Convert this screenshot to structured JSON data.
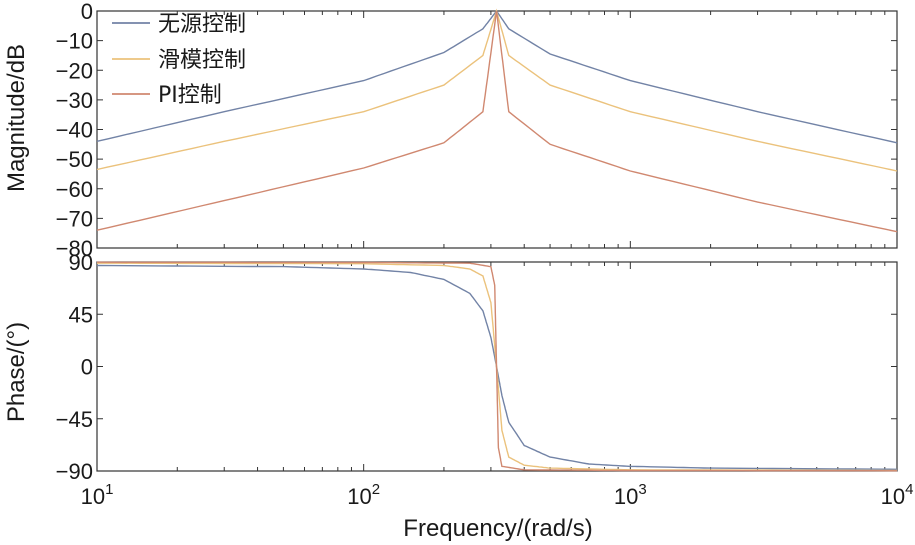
{
  "chart_data": [
    {
      "type": "line",
      "ylabel": "Magnitude/dB",
      "xscale": "log",
      "xlim": [
        10,
        10000
      ],
      "ylim": [
        -80,
        0
      ],
      "yticks": [
        0,
        -10,
        -20,
        -30,
        -40,
        -50,
        -60,
        -70,
        -80
      ],
      "legend": "top-left",
      "grid": false,
      "series": [
        {
          "name": "无源控制",
          "color": "#7283a6",
          "x": [
            10,
            30,
            100,
            200,
            280,
            315,
            350,
            500,
            1000,
            3000,
            10000
          ],
          "values": [
            -44,
            -34,
            -23.5,
            -14,
            -6,
            0,
            -6,
            -14.5,
            -23.5,
            -34,
            -44.5
          ]
        },
        {
          "name": "滑模控制",
          "color": "#ebc27c",
          "x": [
            10,
            30,
            100,
            200,
            280,
            315,
            350,
            500,
            1000,
            3000,
            10000
          ],
          "values": [
            -53.5,
            -44,
            -34,
            -25,
            -15,
            0,
            -15,
            -25,
            -34,
            -44,
            -54
          ]
        },
        {
          "name": "PI控制",
          "color": "#d08870",
          "x": [
            10,
            30,
            100,
            200,
            280,
            315,
            350,
            500,
            1000,
            3000,
            10000
          ],
          "values": [
            -74,
            -64,
            -53,
            -44.5,
            -34,
            0,
            -34,
            -45,
            -54,
            -64.5,
            -74.5
          ]
        }
      ]
    },
    {
      "type": "line",
      "ylabel": "Phase/(°)",
      "xlabel": "Frequency/(rad/s)",
      "xscale": "log",
      "xlim": [
        10,
        10000
      ],
      "ylim": [
        -90,
        90
      ],
      "yticks": [
        90,
        45,
        0,
        -45,
        -90
      ],
      "xticks": [
        "10",
        "100",
        "1000",
        "10000"
      ],
      "xtick_labels": [
        {
          "base": "10",
          "exp": "1"
        },
        {
          "base": "10",
          "exp": "2"
        },
        {
          "base": "10",
          "exp": "3"
        },
        {
          "base": "10",
          "exp": "4"
        }
      ],
      "grid": false,
      "series": [
        {
          "name": "无源控制",
          "color": "#7283a6",
          "x": [
            10,
            50,
            100,
            150,
            200,
            250,
            280,
            300,
            315,
            330,
            350,
            400,
            500,
            700,
            1000,
            2000,
            10000
          ],
          "values": [
            87,
            86,
            84,
            81,
            75,
            63,
            48,
            25,
            0,
            -25,
            -48,
            -68,
            -78,
            -84,
            -86,
            -87.5,
            -88.5
          ]
        },
        {
          "name": "滑模控制",
          "color": "#ebc27c",
          "x": [
            10,
            100,
            200,
            250,
            280,
            300,
            315,
            330,
            350,
            400,
            500,
            1000,
            10000
          ],
          "values": [
            89,
            88.5,
            87,
            84,
            78,
            55,
            0,
            -55,
            -78,
            -85,
            -87.5,
            -89,
            -89.5
          ]
        },
        {
          "name": "PI控制",
          "color": "#d08870",
          "x": [
            10,
            100,
            250,
            300,
            310,
            315,
            320,
            330,
            400,
            1000,
            10000
          ],
          "values": [
            89.8,
            89.6,
            89,
            86,
            70,
            0,
            -70,
            -86,
            -89,
            -89.6,
            -89.8
          ]
        }
      ]
    }
  ]
}
